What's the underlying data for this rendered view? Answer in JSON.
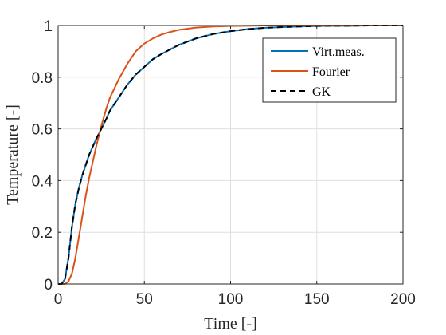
{
  "chart_data": {
    "type": "line",
    "xlabel": "Time [-]",
    "ylabel": "Temperature [-]",
    "xlim": [
      0,
      200
    ],
    "ylim": [
      0,
      1
    ],
    "xticks": [
      0,
      50,
      100,
      150,
      200
    ],
    "xtick_labels": [
      "0",
      "50",
      "100",
      "150",
      "200"
    ],
    "yticks": [
      0,
      0.2,
      0.4,
      0.6,
      0.8,
      1
    ],
    "ytick_labels": [
      "0",
      "0.2",
      "0.4",
      "0.6",
      "0.8",
      "1"
    ],
    "grid": true,
    "legend_position": "top-right",
    "series": [
      {
        "name": "Virt.meas.",
        "color": "#0072BD",
        "style": "solid",
        "x": [
          0,
          2,
          4,
          6,
          8,
          10,
          12,
          14,
          16,
          18,
          20,
          22,
          25,
          28,
          30,
          35,
          40,
          45,
          50,
          55,
          60,
          70,
          80,
          90,
          100,
          110,
          120,
          130,
          140,
          150,
          160,
          170,
          180,
          190,
          200
        ],
        "y": [
          0,
          0.0,
          0.02,
          0.1,
          0.22,
          0.31,
          0.37,
          0.42,
          0.46,
          0.5,
          0.53,
          0.56,
          0.6,
          0.64,
          0.67,
          0.72,
          0.77,
          0.81,
          0.84,
          0.87,
          0.89,
          0.925,
          0.95,
          0.967,
          0.978,
          0.986,
          0.991,
          0.994,
          0.996,
          0.998,
          0.999,
          0.999,
          1.0,
          1.0,
          1.0
        ]
      },
      {
        "name": "Fourier",
        "color": "#D95319",
        "style": "solid",
        "x": [
          0,
          4,
          6,
          8,
          10,
          12,
          14,
          16,
          18,
          20,
          22,
          25,
          28,
          30,
          35,
          40,
          45,
          50,
          55,
          60,
          65,
          70,
          80,
          90,
          100,
          110,
          120,
          130,
          140,
          150,
          160,
          170,
          180,
          190,
          200
        ],
        "y": [
          0,
          0.0,
          0.01,
          0.04,
          0.1,
          0.18,
          0.26,
          0.34,
          0.41,
          0.47,
          0.53,
          0.61,
          0.68,
          0.72,
          0.79,
          0.85,
          0.9,
          0.93,
          0.95,
          0.965,
          0.975,
          0.983,
          0.992,
          0.996,
          0.998,
          0.999,
          1.0,
          1.0,
          1.0,
          1.0,
          1.0,
          1.0,
          1.0,
          1.0,
          1.0
        ]
      },
      {
        "name": "GK",
        "color": "#000000",
        "style": "dashed",
        "x": [
          0,
          2,
          4,
          6,
          8,
          10,
          12,
          14,
          16,
          18,
          20,
          22,
          25,
          28,
          30,
          35,
          40,
          45,
          50,
          55,
          60,
          70,
          80,
          90,
          100,
          110,
          120,
          130,
          140,
          150,
          160,
          170,
          180,
          190,
          200
        ],
        "y": [
          0,
          0.0,
          0.02,
          0.1,
          0.22,
          0.31,
          0.37,
          0.42,
          0.46,
          0.5,
          0.53,
          0.56,
          0.6,
          0.64,
          0.67,
          0.72,
          0.77,
          0.81,
          0.84,
          0.87,
          0.89,
          0.925,
          0.95,
          0.967,
          0.978,
          0.986,
          0.991,
          0.994,
          0.996,
          0.998,
          0.999,
          0.999,
          1.0,
          1.0,
          1.0
        ]
      }
    ]
  }
}
